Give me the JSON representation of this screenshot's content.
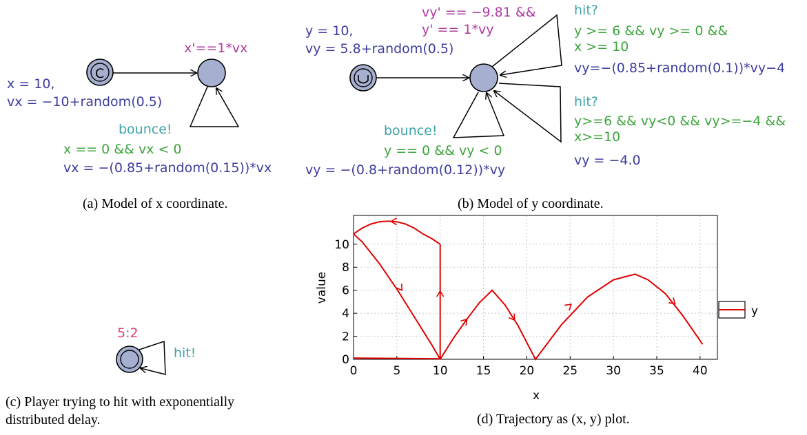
{
  "panel_a": {
    "init_x": "x = 10,",
    "init_vx": "vx = −10+random(0.5)",
    "invariant": "x'==1*vx",
    "sync": "bounce!",
    "guard": "x == 0 && vx < 0",
    "update": "vx = −(0.85+random(0.15))*vx",
    "caption": "(a) Model of x coordinate."
  },
  "panel_b": {
    "init_y": "y = 10,",
    "init_vy": "vy = 5.8+random(0.5)",
    "invariant_1": "vy' == −9.81 &&",
    "invariant_2": "y' == 1*vy",
    "hit1_sync": "hit?",
    "hit1_guard_1": "y >= 6 && vy >= 0 &&",
    "hit1_guard_2": "x >= 10",
    "hit1_update": "vy=−(0.85+random(0.1))*vy−4",
    "hit2_sync": "hit?",
    "hit2_guard_1": "y>=6 && vy<0 && vy>=−4 &&",
    "hit2_guard_2": "x>=10",
    "hit2_update": "vy = −4.0",
    "bounce_sync": "bounce!",
    "bounce_guard": "y == 0 && vy < 0",
    "bounce_update": "vy = −(0.8+random(0.12))*vy",
    "caption": "(b) Model of y coordinate."
  },
  "panel_c": {
    "rate": "5:2",
    "sync": "hit!",
    "caption_1": "(c) Player trying to hit with exponentially",
    "caption_2": "distributed delay."
  },
  "panel_d": {
    "caption": "(d) Trajectory as (x, y) plot."
  },
  "chart_data": {
    "type": "line",
    "xlabel": "x",
    "ylabel": "value",
    "xlim": [
      0,
      42
    ],
    "ylim": [
      0,
      12.5
    ],
    "xticks": [
      0,
      5,
      10,
      15,
      20,
      25,
      30,
      35,
      40
    ],
    "yticks": [
      0,
      2,
      4,
      6,
      8,
      10
    ],
    "grid": true,
    "legend_position": "right",
    "series": [
      {
        "name": "y",
        "color": "#e00000",
        "points": [
          [
            0,
            10.9
          ],
          [
            1,
            11.4
          ],
          [
            2,
            11.75
          ],
          [
            3,
            11.95
          ],
          [
            4,
            12.0
          ],
          [
            5,
            11.95
          ],
          [
            6,
            11.75
          ],
          [
            7,
            11.4
          ],
          [
            8,
            10.9
          ],
          [
            9,
            10.5
          ],
          [
            10,
            10.0
          ],
          [
            10,
            0.0
          ],
          [
            0,
            0.1
          ],
          [
            1,
            9.9
          ],
          [
            3,
            8.2
          ],
          [
            5,
            6.0
          ],
          [
            7,
            3.5
          ],
          [
            9,
            1.2
          ],
          [
            10,
            0.0
          ],
          [
            11.5,
            1.8
          ],
          [
            13,
            3.4
          ],
          [
            14.5,
            4.9
          ],
          [
            16,
            6.0
          ],
          [
            17.5,
            4.7
          ],
          [
            19,
            2.9
          ],
          [
            21,
            0.0
          ],
          [
            24,
            3.0
          ],
          [
            27,
            5.4
          ],
          [
            30,
            6.9
          ],
          [
            32.5,
            7.4
          ],
          [
            34,
            6.9
          ],
          [
            36,
            5.7
          ],
          [
            38,
            3.8
          ],
          [
            40.3,
            1.3
          ]
        ]
      }
    ],
    "direction_arrows_x": [
      4.5,
      5.5,
      10,
      13,
      18.5,
      25,
      37
    ]
  }
}
